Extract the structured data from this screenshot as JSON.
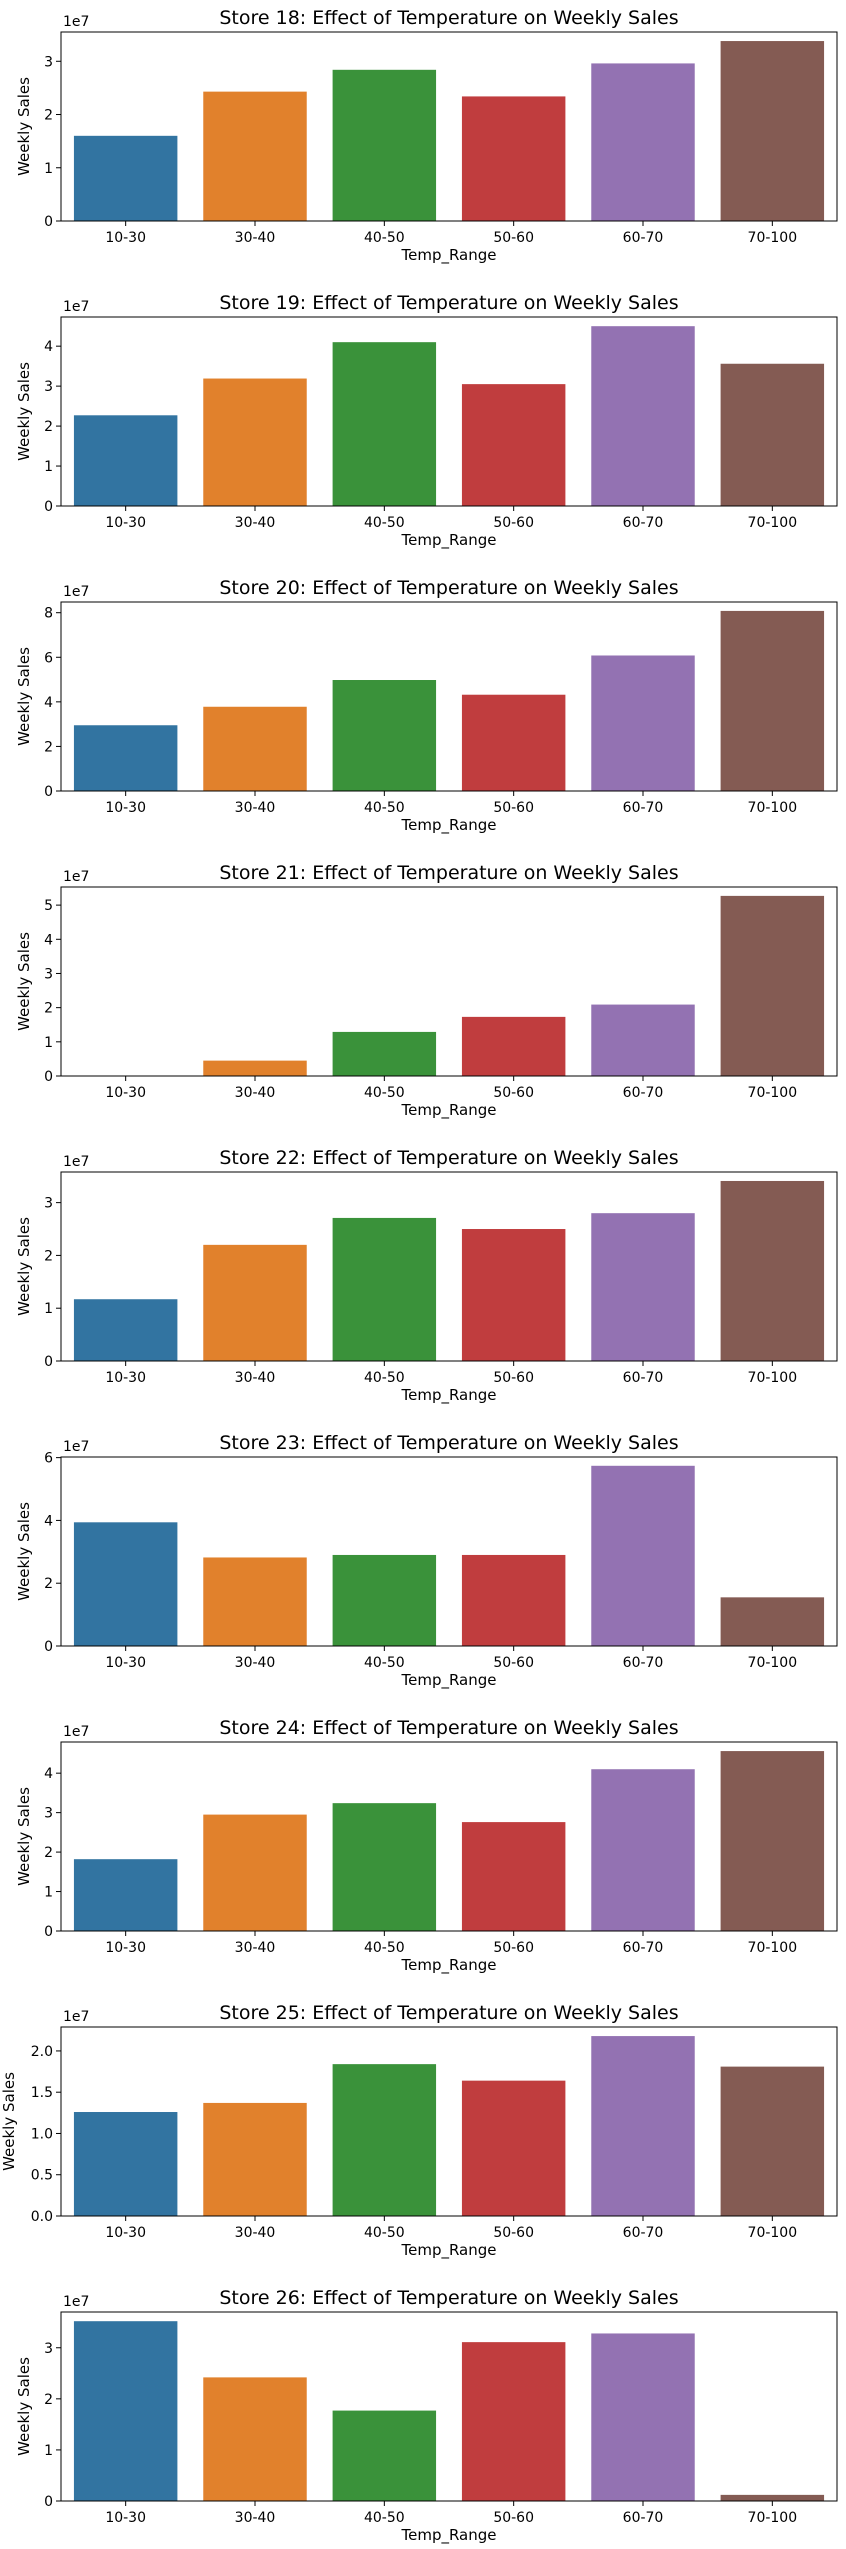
{
  "chart_data": [
    {
      "type": "bar",
      "title": "Store  18: Effect of Temperature on Weekly Sales",
      "xlabel": "Temp_Range",
      "ylabel": "Weekly Sales",
      "offset_label": "1e7",
      "categories": [
        "10-30",
        "30-40",
        "40-50",
        "50-60",
        "60-70",
        "70-100"
      ],
      "values": [
        1.6,
        2.43,
        2.84,
        2.34,
        2.96,
        3.38
      ],
      "ylim": [
        0,
        3.55
      ],
      "yticks": [
        0,
        1,
        2,
        3
      ],
      "ytick_labels": [
        "0",
        "1",
        "2",
        "3"
      ],
      "colors": [
        "#3274a1",
        "#e1812c",
        "#3a923a",
        "#c03d3e",
        "#9372b2",
        "#845b53"
      ],
      "grid": false
    },
    {
      "type": "bar",
      "title": "Store  19: Effect of Temperature on Weekly Sales",
      "xlabel": "Temp_Range",
      "ylabel": "Weekly Sales",
      "offset_label": "1e7",
      "categories": [
        "10-30",
        "30-40",
        "40-50",
        "50-60",
        "60-70",
        "70-100"
      ],
      "values": [
        2.27,
        3.19,
        4.1,
        3.05,
        4.5,
        3.56
      ],
      "ylim": [
        0,
        4.73
      ],
      "yticks": [
        0,
        1,
        2,
        3,
        4
      ],
      "ytick_labels": [
        "0",
        "1",
        "2",
        "3",
        "4"
      ],
      "colors": [
        "#3274a1",
        "#e1812c",
        "#3a923a",
        "#c03d3e",
        "#9372b2",
        "#845b53"
      ],
      "grid": false
    },
    {
      "type": "bar",
      "title": "Store  20: Effect of Temperature on Weekly Sales",
      "xlabel": "Temp_Range",
      "ylabel": "Weekly Sales",
      "offset_label": "1e7",
      "categories": [
        "10-30",
        "30-40",
        "40-50",
        "50-60",
        "60-70",
        "70-100"
      ],
      "values": [
        2.95,
        3.78,
        4.98,
        4.32,
        6.08,
        8.08
      ],
      "ylim": [
        0,
        8.48
      ],
      "yticks": [
        0,
        2,
        4,
        6,
        8
      ],
      "ytick_labels": [
        "0",
        "2",
        "4",
        "6",
        "8"
      ],
      "colors": [
        "#3274a1",
        "#e1812c",
        "#3a923a",
        "#c03d3e",
        "#9372b2",
        "#845b53"
      ],
      "grid": false
    },
    {
      "type": "bar",
      "title": "Store  21: Effect of Temperature on Weekly Sales",
      "xlabel": "Temp_Range",
      "ylabel": "Weekly Sales",
      "offset_label": "1e7",
      "categories": [
        "10-30",
        "30-40",
        "40-50",
        "50-60",
        "60-70",
        "70-100"
      ],
      "values": [
        0,
        0.45,
        1.29,
        1.73,
        2.09,
        5.27
      ],
      "ylim": [
        0,
        5.53
      ],
      "yticks": [
        0,
        1,
        2,
        3,
        4,
        5
      ],
      "ytick_labels": [
        "0",
        "1",
        "2",
        "3",
        "4",
        "5"
      ],
      "colors": [
        "#3274a1",
        "#e1812c",
        "#3a923a",
        "#c03d3e",
        "#9372b2",
        "#845b53"
      ],
      "grid": false
    },
    {
      "type": "bar",
      "title": "Store  22: Effect of Temperature on Weekly Sales",
      "xlabel": "Temp_Range",
      "ylabel": "Weekly Sales",
      "offset_label": "1e7",
      "categories": [
        "10-30",
        "30-40",
        "40-50",
        "50-60",
        "60-70",
        "70-100"
      ],
      "values": [
        1.17,
        2.2,
        2.71,
        2.5,
        2.8,
        3.41
      ],
      "ylim": [
        0,
        3.58
      ],
      "yticks": [
        0,
        1,
        2,
        3
      ],
      "ytick_labels": [
        "0",
        "1",
        "2",
        "3"
      ],
      "colors": [
        "#3274a1",
        "#e1812c",
        "#3a923a",
        "#c03d3e",
        "#9372b2",
        "#845b53"
      ],
      "grid": false
    },
    {
      "type": "bar",
      "title": "Store  23: Effect of Temperature on Weekly Sales",
      "xlabel": "Temp_Range",
      "ylabel": "Weekly Sales",
      "offset_label": "1e7",
      "categories": [
        "10-30",
        "30-40",
        "40-50",
        "50-60",
        "60-70",
        "70-100"
      ],
      "values": [
        3.94,
        2.82,
        2.9,
        2.9,
        5.74,
        1.55
      ],
      "ylim": [
        0,
        6.02
      ],
      "yticks": [
        0,
        2,
        4,
        6
      ],
      "ytick_labels": [
        "0",
        "2",
        "4",
        "6"
      ],
      "colors": [
        "#3274a1",
        "#e1812c",
        "#3a923a",
        "#c03d3e",
        "#9372b2",
        "#845b53"
      ],
      "grid": false
    },
    {
      "type": "bar",
      "title": "Store  24: Effect of Temperature on Weekly Sales",
      "xlabel": "Temp_Range",
      "ylabel": "Weekly Sales",
      "offset_label": "1e7",
      "categories": [
        "10-30",
        "30-40",
        "40-50",
        "50-60",
        "60-70",
        "70-100"
      ],
      "values": [
        1.82,
        2.95,
        3.24,
        2.76,
        4.1,
        4.56
      ],
      "ylim": [
        0,
        4.79
      ],
      "yticks": [
        0,
        1,
        2,
        3,
        4
      ],
      "ytick_labels": [
        "0",
        "1",
        "2",
        "3",
        "4"
      ],
      "colors": [
        "#3274a1",
        "#e1812c",
        "#3a923a",
        "#c03d3e",
        "#9372b2",
        "#845b53"
      ],
      "grid": false
    },
    {
      "type": "bar",
      "title": "Store  25: Effect of Temperature on Weekly Sales",
      "xlabel": "Temp_Range",
      "ylabel": "Weekly Sales",
      "offset_label": "1e7",
      "categories": [
        "10-30",
        "30-40",
        "40-50",
        "50-60",
        "60-70",
        "70-100"
      ],
      "values": [
        1.26,
        1.37,
        1.84,
        1.64,
        2.18,
        1.81
      ],
      "ylim": [
        0,
        2.29
      ],
      "yticks": [
        0,
        0.5,
        1.0,
        1.5,
        2.0
      ],
      "ytick_labels": [
        "0.0",
        "0.5",
        "1.0",
        "1.5",
        "2.0"
      ],
      "colors": [
        "#3274a1",
        "#e1812c",
        "#3a923a",
        "#c03d3e",
        "#9372b2",
        "#845b53"
      ],
      "grid": false
    },
    {
      "type": "bar",
      "title": "Store  26: Effect of Temperature on Weekly Sales",
      "xlabel": "Temp_Range",
      "ylabel": "Weekly Sales",
      "offset_label": "1e7",
      "categories": [
        "10-30",
        "30-40",
        "40-50",
        "50-60",
        "60-70",
        "70-100"
      ],
      "values": [
        3.52,
        2.42,
        1.77,
        3.11,
        3.28,
        0.12
      ],
      "ylim": [
        0,
        3.7
      ],
      "yticks": [
        0,
        1,
        2,
        3
      ],
      "ytick_labels": [
        "0",
        "1",
        "2",
        "3"
      ],
      "colors": [
        "#3274a1",
        "#e1812c",
        "#3a923a",
        "#c03d3e",
        "#9372b2",
        "#845b53"
      ],
      "grid": false
    }
  ]
}
